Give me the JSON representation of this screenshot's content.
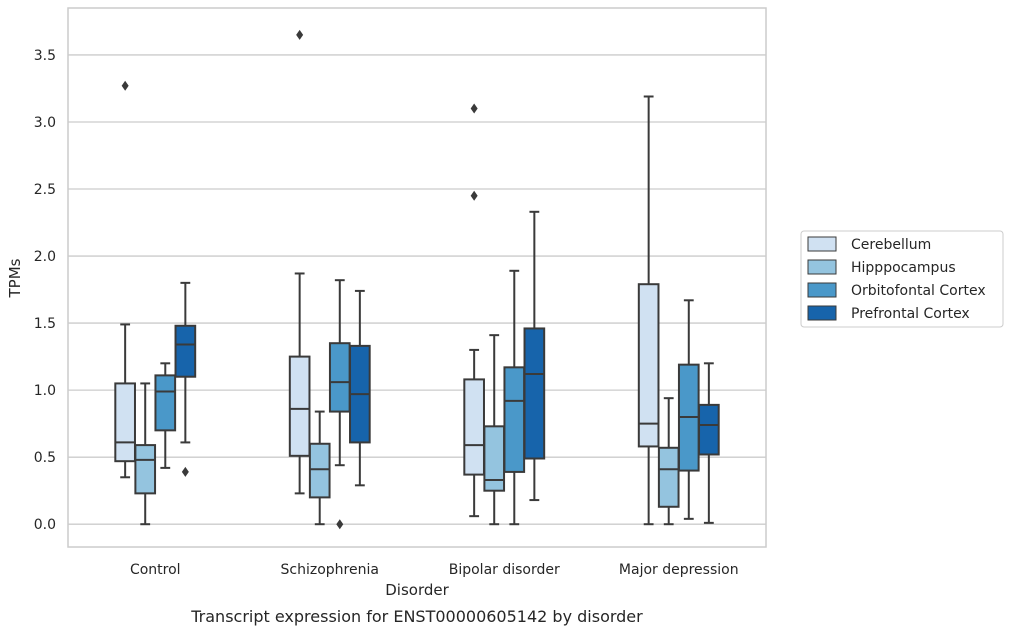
{
  "caption": "Transcript expression for ENST00000605142 by disorder",
  "chart_data": {
    "type": "box",
    "title": "",
    "xlabel": "Disorder",
    "ylabel": "TPMs",
    "ylim": [
      -0.17,
      3.85
    ],
    "yticks": [
      "0.0",
      "0.5",
      "1.0",
      "1.5",
      "2.0",
      "2.5",
      "3.0",
      "3.5"
    ],
    "ytick_values": [
      0,
      0.5,
      1.0,
      1.5,
      2.0,
      2.5,
      3.0,
      3.5
    ],
    "grid": "horizontal",
    "legend_position": "right",
    "categories": [
      "Control",
      "Schizophrenia",
      "Bipolar disorder",
      "Major depression"
    ],
    "series": [
      {
        "name": "Cerebellum",
        "color": "#d0e1f2",
        "boxes": [
          {
            "whislo": 0.35,
            "q1": 0.47,
            "med": 0.61,
            "q3": 1.05,
            "whishi": 1.49,
            "fliers": [
              3.27
            ]
          },
          {
            "whislo": 0.23,
            "q1": 0.51,
            "med": 0.86,
            "q3": 1.25,
            "whishi": 1.87,
            "fliers": [
              3.65
            ]
          },
          {
            "whislo": 0.06,
            "q1": 0.37,
            "med": 0.59,
            "q3": 1.08,
            "whishi": 1.3,
            "fliers": [
              2.45,
              3.1
            ]
          },
          {
            "whislo": 0.0,
            "q1": 0.58,
            "med": 0.75,
            "q3": 1.79,
            "whishi": 3.19,
            "fliers": []
          }
        ]
      },
      {
        "name": "Hipppocampus",
        "color": "#94c4df",
        "boxes": [
          {
            "whislo": 0.0,
            "q1": 0.23,
            "med": 0.48,
            "q3": 0.59,
            "whishi": 1.05,
            "fliers": []
          },
          {
            "whislo": 0.0,
            "q1": 0.2,
            "med": 0.41,
            "q3": 0.6,
            "whishi": 0.84,
            "fliers": []
          },
          {
            "whislo": 0.0,
            "q1": 0.25,
            "med": 0.33,
            "q3": 0.73,
            "whishi": 1.41,
            "fliers": []
          },
          {
            "whislo": 0.0,
            "q1": 0.13,
            "med": 0.41,
            "q3": 0.57,
            "whishi": 0.94,
            "fliers": []
          }
        ]
      },
      {
        "name": "Orbitofontal Cortex",
        "color": "#4a98c9",
        "boxes": [
          {
            "whislo": 0.42,
            "q1": 0.7,
            "med": 0.99,
            "q3": 1.11,
            "whishi": 1.2,
            "fliers": []
          },
          {
            "whislo": 0.44,
            "q1": 0.84,
            "med": 1.06,
            "q3": 1.35,
            "whishi": 1.82,
            "fliers": [
              0.0
            ]
          },
          {
            "whislo": 0.0,
            "q1": 0.39,
            "med": 0.92,
            "q3": 1.17,
            "whishi": 1.89,
            "fliers": []
          },
          {
            "whislo": 0.04,
            "q1": 0.4,
            "med": 0.8,
            "q3": 1.19,
            "whishi": 1.67,
            "fliers": []
          }
        ]
      },
      {
        "name": "Prefrontal Cortex",
        "color": "#1764ab",
        "boxes": [
          {
            "whislo": 0.61,
            "q1": 1.1,
            "med": 1.34,
            "q3": 1.48,
            "whishi": 1.8,
            "fliers": [
              0.39
            ]
          },
          {
            "whislo": 0.29,
            "q1": 0.61,
            "med": 0.97,
            "q3": 1.33,
            "whishi": 1.74,
            "fliers": []
          },
          {
            "whislo": 0.18,
            "q1": 0.49,
            "med": 1.12,
            "q3": 1.46,
            "whishi": 2.33,
            "fliers": []
          },
          {
            "whislo": 0.01,
            "q1": 0.52,
            "med": 0.74,
            "q3": 0.89,
            "whishi": 1.2,
            "fliers": []
          }
        ]
      }
    ]
  }
}
